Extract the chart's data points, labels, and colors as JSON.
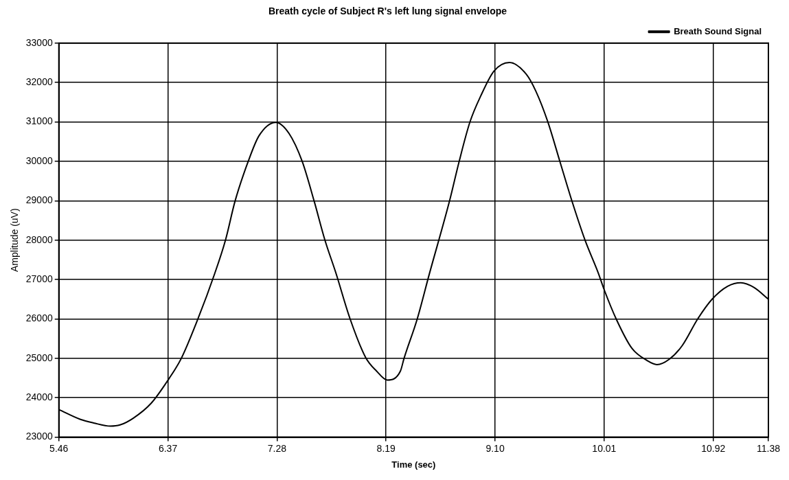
{
  "chart_data": {
    "type": "line",
    "title": "Breath cycle of Subject R's left lung signal envelope",
    "xlabel": "Time (sec)",
    "ylabel": "Amplitude (uV)",
    "x": [
      5.46,
      5.64,
      5.75,
      5.89,
      5.97,
      6.08,
      6.23,
      6.38,
      6.48,
      6.62,
      6.76,
      6.85,
      6.93,
      7.04,
      7.13,
      7.27,
      7.38,
      7.49,
      7.59,
      7.68,
      7.77,
      7.89,
      8.02,
      8.11,
      8.2,
      8.31,
      8.34,
      8.45,
      8.55,
      8.72,
      8.8,
      8.89,
      8.98,
      9.09,
      9.22,
      9.36,
      9.44,
      9.54,
      9.64,
      9.74,
      9.85,
      9.96,
      10.01,
      10.11,
      10.24,
      10.37,
      10.45,
      10.55,
      10.66,
      10.79,
      10.91,
      11.04,
      11.15,
      11.26,
      11.38
    ],
    "series": [
      {
        "name": "Breath Sound Signal",
        "color": "#000000",
        "values": [
          23700,
          23450,
          23360,
          23280,
          23310,
          23480,
          23860,
          24490,
          24990,
          26000,
          27150,
          28000,
          28990,
          30000,
          30650,
          30990,
          30710,
          30000,
          28990,
          28000,
          27180,
          26000,
          25020,
          24680,
          24450,
          24680,
          25000,
          26000,
          27130,
          29000,
          30000,
          31000,
          31660,
          32290,
          32510,
          32210,
          31780,
          31000,
          30000,
          29000,
          28000,
          27170,
          26740,
          26000,
          25260,
          24940,
          24840,
          24970,
          25320,
          26000,
          26500,
          26830,
          26920,
          26800,
          26500
        ]
      }
    ],
    "xlim": [
      5.46,
      11.38
    ],
    "xticks": [
      {
        "value": 5.46,
        "label": "5.46"
      },
      {
        "value": 6.37,
        "label": "6.37"
      },
      {
        "value": 7.28,
        "label": "7.28"
      },
      {
        "value": 8.19,
        "label": "8.19"
      },
      {
        "value": 9.1,
        "label": "9.10"
      },
      {
        "value": 10.01,
        "label": "10.01"
      },
      {
        "value": 10.92,
        "label": "10.92"
      },
      {
        "value": 11.38,
        "label": "11.38"
      }
    ],
    "ylim": [
      23000,
      33000
    ],
    "yticks": [
      23000,
      24000,
      25000,
      26000,
      27000,
      28000,
      29000,
      30000,
      31000,
      32000,
      33000
    ],
    "grid": true,
    "legend": "top right",
    "marker": "none",
    "line_style": "solid"
  }
}
